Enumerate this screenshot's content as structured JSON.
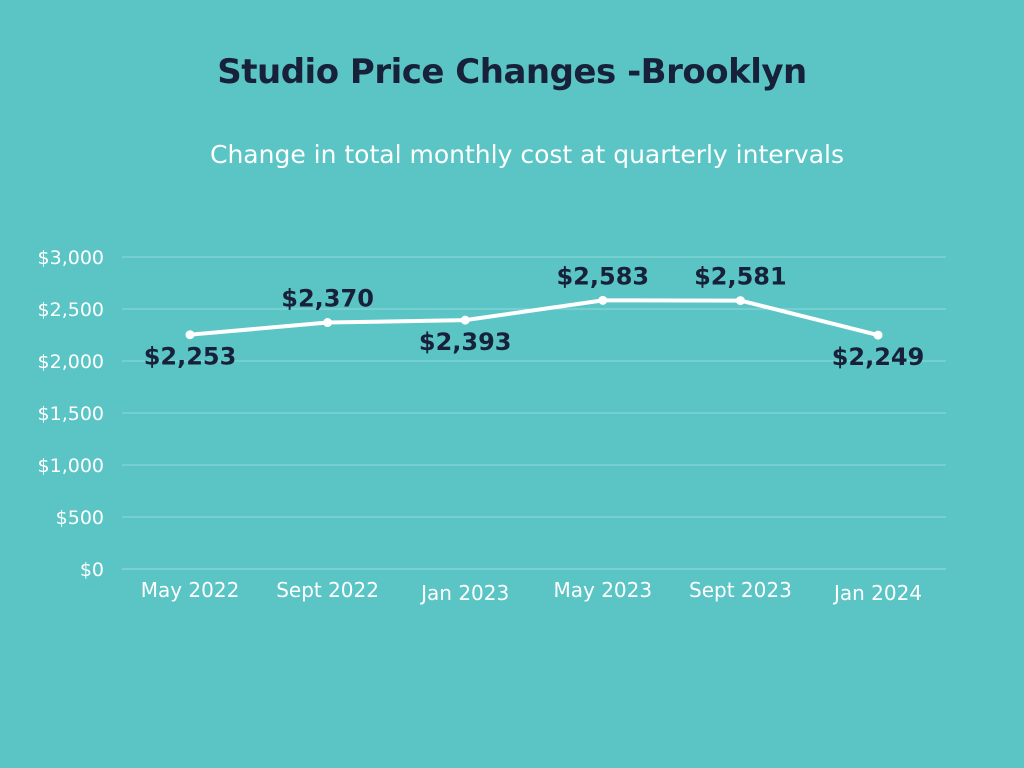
{
  "style": {
    "background": "#5bc5c6",
    "title_color": "#172139",
    "subtitle_color": "#ffffff",
    "line_color": "#ffffff",
    "gridline_color": "#8fd8d8",
    "axis_text_color": "#ffffff",
    "data_label_color": "#172139"
  },
  "chart_data": {
    "type": "line",
    "title": "Studio Price Changes -Brooklyn",
    "subtitle": "Change in total monthly cost at quarterly intervals",
    "categories": [
      "May 2022",
      "Sept 2022",
      "Jan 2023",
      "May 2023",
      "Sept 2023",
      "Jan 2024"
    ],
    "series": [
      {
        "values": [
          2253,
          2370,
          2393,
          2583,
          2581,
          2249
        ],
        "labels": [
          "$2,253",
          "$2,370",
          "$2,393",
          "$2,583",
          "$2,581",
          "$2,249"
        ],
        "label_position": [
          "below",
          "above",
          "below",
          "above",
          "above",
          "below"
        ]
      }
    ],
    "ylim": [
      0,
      3000
    ],
    "yticks": [
      0,
      500,
      1000,
      1500,
      2000,
      2500,
      3000
    ],
    "ytick_labels": [
      "$0",
      "$500",
      "$1,000",
      "$1,500",
      "$2,000",
      "$2,500",
      "$3,000"
    ],
    "grid": true,
    "legend": "none",
    "xlabel": "",
    "ylabel": ""
  }
}
